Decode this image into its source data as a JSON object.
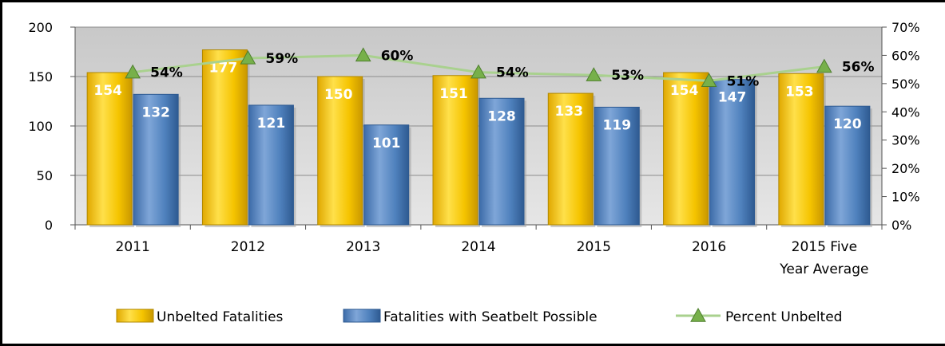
{
  "chart_data": {
    "type": "bar",
    "categories": [
      "2011",
      "2012",
      "2013",
      "2014",
      "2015",
      "2016",
      "2015 Five|Year Average"
    ],
    "series": [
      {
        "name": "Unbelted Fatalities",
        "values": [
          154,
          177,
          150,
          151,
          133,
          154,
          153
        ],
        "color": "#F5C400"
      },
      {
        "name": "Fatalities with Seatbelt Possible",
        "values": [
          132,
          121,
          101,
          128,
          119,
          147,
          120
        ],
        "color": "#4F81BD"
      },
      {
        "name": "Percent Unbelted",
        "values": [
          54,
          59,
          60,
          54,
          53,
          51,
          56
        ],
        "axis": "right",
        "type": "line",
        "color": "#A9D18E",
        "marker": "triangle",
        "label_suffix": "%"
      }
    ],
    "y_left": {
      "min": 0,
      "max": 200,
      "ticks": [
        "0",
        "50",
        "100",
        "150",
        "200"
      ]
    },
    "y_right": {
      "min": 0,
      "max": 70,
      "ticks": [
        "0%",
        "10%",
        "20%",
        "30%",
        "40%",
        "50%",
        "60%",
        "70%"
      ]
    },
    "grid": true,
    "legend": "bottom"
  }
}
